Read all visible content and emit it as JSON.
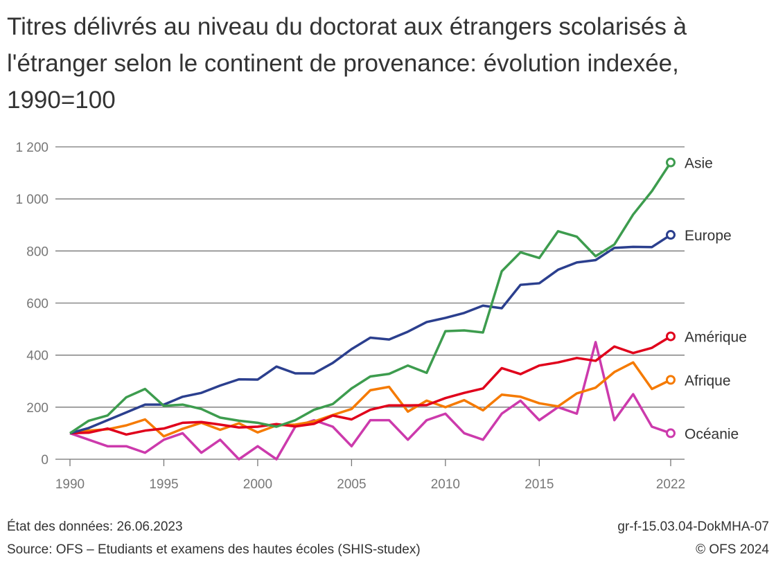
{
  "title": "Titres délivrés au niveau du doctorat aux étrangers scolarisés à l'étranger selon le continent de provenance: évolution indexée, 1990=100",
  "footer": {
    "data_state": "État des données: 26.06.2023",
    "source": "Source: OFS – Etudiants et examens des hautes écoles (SHIS-studex)",
    "code": "gr-f-15.03.04-DokMHA-07",
    "copyright": "© OFS 2024"
  },
  "chart_data": {
    "type": "line",
    "title": "Titres délivrés au niveau du doctorat aux étrangers scolarisés à l'étranger selon le continent de provenance: évolution indexée, 1990=100",
    "xlabel": "",
    "ylabel": "",
    "xlim": [
      1990,
      2022
    ],
    "ylim": [
      0,
      1200
    ],
    "yticks": [
      0,
      200,
      400,
      600,
      800,
      1000,
      1200
    ],
    "ytick_labels": [
      "0",
      "200",
      "400",
      "600",
      "800",
      "1 000",
      "1 200"
    ],
    "xticks": [
      1990,
      1995,
      2000,
      2005,
      2010,
      2015,
      2022
    ],
    "grid": true,
    "legend": "end-of-line labels",
    "x": [
      1990,
      1991,
      1992,
      1993,
      1994,
      1995,
      1996,
      1997,
      1998,
      1999,
      2000,
      2001,
      2002,
      2003,
      2004,
      2005,
      2006,
      2007,
      2008,
      2009,
      2010,
      2011,
      2012,
      2013,
      2014,
      2015,
      2016,
      2017,
      2018,
      2019,
      2020,
      2021,
      2022
    ],
    "series": [
      {
        "name": "Asie",
        "color": "#3d9c4e",
        "values": [
          100,
          148,
          168,
          238,
          270,
          205,
          210,
          193,
          160,
          148,
          140,
          125,
          150,
          190,
          212,
          272,
          318,
          328,
          360,
          332,
          492,
          495,
          487,
          722,
          795,
          773,
          876,
          855,
          780,
          825,
          940,
          1030,
          1140
        ]
      },
      {
        "name": "Europe",
        "color": "#2b3f8e",
        "values": [
          100,
          120,
          150,
          180,
          210,
          210,
          240,
          255,
          283,
          307,
          306,
          356,
          330,
          330,
          370,
          423,
          467,
          460,
          490,
          527,
          543,
          562,
          590,
          580,
          670,
          676,
          728,
          756,
          765,
          812,
          816,
          815,
          862
        ]
      },
      {
        "name": "Amérique",
        "color": "#e0001b",
        "values": [
          100,
          102,
          118,
          95,
          110,
          118,
          140,
          143,
          133,
          122,
          125,
          135,
          126,
          136,
          168,
          153,
          190,
          207,
          207,
          208,
          235,
          255,
          272,
          350,
          327,
          360,
          372,
          389,
          378,
          433,
          408,
          428,
          472
        ]
      },
      {
        "name": "Afrique",
        "color": "#f57a00",
        "values": [
          100,
          110,
          115,
          130,
          153,
          88,
          117,
          140,
          113,
          138,
          103,
          130,
          133,
          145,
          170,
          193,
          265,
          278,
          183,
          225,
          200,
          227,
          188,
          248,
          240,
          215,
          203,
          253,
          275,
          335,
          372,
          270,
          305
        ]
      },
      {
        "name": "Océanie",
        "color": "#cc3aac",
        "values": [
          100,
          75,
          50,
          50,
          25,
          75,
          100,
          25,
          75,
          0,
          50,
          0,
          125,
          150,
          125,
          50,
          150,
          150,
          75,
          150,
          175,
          100,
          75,
          175,
          225,
          150,
          200,
          175,
          450,
          150,
          250,
          125,
          100
        ]
      }
    ]
  }
}
